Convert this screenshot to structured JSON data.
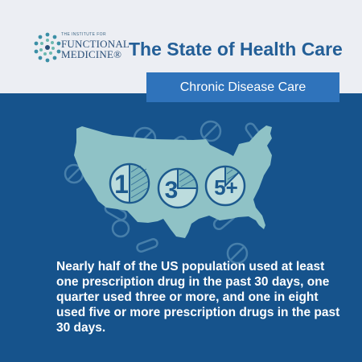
{
  "header": {
    "logo": {
      "line1": "THE INSTITUTE FOR",
      "line2": "FUNCTIONAL",
      "line3": "MEDICINE®"
    },
    "title": "The State of Health Care",
    "tag": "Chronic Disease Care"
  },
  "icons": {
    "circle1_label": "1",
    "circle2_label": "3",
    "circle3_label": "5+"
  },
  "body": {
    "text": "Nearly half of the US population used at least one prescription drug in the past 30 days, one quarter used three or more, and one in eight used five or more prescription drugs in the past 30 days."
  },
  "colors": {
    "header_bg": "#eceef3",
    "main_bg": "#16538c",
    "accent": "#2f73bb",
    "map_fill": "#8fc2c6"
  }
}
